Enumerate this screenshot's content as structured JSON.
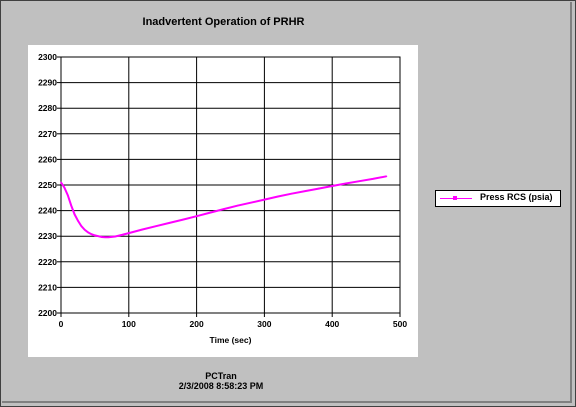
{
  "chart_data": {
    "type": "line",
    "title": "Inadvertent Operation of PRHR",
    "xlabel": "Time (sec)",
    "ylabel": "",
    "xlim": [
      0,
      500
    ],
    "ylim": [
      2200,
      2300
    ],
    "x_ticks": [
      0,
      100,
      200,
      300,
      400,
      500
    ],
    "y_ticks": [
      2200,
      2210,
      2220,
      2230,
      2240,
      2250,
      2260,
      2270,
      2280,
      2290,
      2300
    ],
    "grid": true,
    "legend_position": "right",
    "series": [
      {
        "name": "Press RCS (psia)",
        "color": "#ff00ff",
        "points": [
          [
            0,
            2251
          ],
          [
            5,
            2249
          ],
          [
            10,
            2246
          ],
          [
            15,
            2242
          ],
          [
            20,
            2238.5
          ],
          [
            25,
            2236
          ],
          [
            30,
            2234
          ],
          [
            35,
            2232.5
          ],
          [
            40,
            2231.5
          ],
          [
            45,
            2230.8
          ],
          [
            50,
            2230.3
          ],
          [
            55,
            2230
          ],
          [
            60,
            2229.7
          ],
          [
            65,
            2229.6
          ],
          [
            70,
            2229.6
          ],
          [
            80,
            2229.9
          ],
          [
            90,
            2230.5
          ],
          [
            100,
            2231.2
          ],
          [
            120,
            2232.6
          ],
          [
            140,
            2233.9
          ],
          [
            160,
            2235.2
          ],
          [
            180,
            2236.5
          ],
          [
            200,
            2237.8
          ],
          [
            220,
            2239.2
          ],
          [
            240,
            2240.6
          ],
          [
            260,
            2241.9
          ],
          [
            280,
            2243.1
          ],
          [
            300,
            2244.3
          ],
          [
            320,
            2245.5
          ],
          [
            340,
            2246.6
          ],
          [
            360,
            2247.6
          ],
          [
            380,
            2248.6
          ],
          [
            400,
            2249.6
          ],
          [
            420,
            2250.6
          ],
          [
            440,
            2251.5
          ],
          [
            460,
            2252.4
          ],
          [
            480,
            2253.4
          ]
        ]
      }
    ]
  },
  "footer": {
    "line1": "PCTran",
    "line2": "2/3/2008 8:58:23 PM"
  }
}
